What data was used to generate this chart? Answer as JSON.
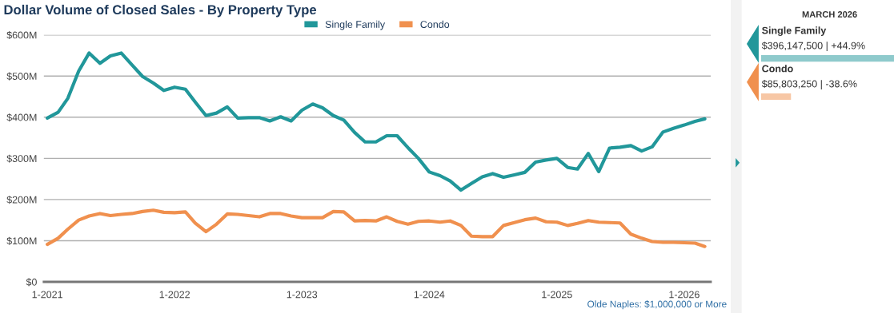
{
  "chart_data": {
    "type": "line",
    "title": "Dollar Volume of Closed Sales - By Property Type",
    "x": [
      "2021-01",
      "2021-02",
      "2021-03",
      "2021-04",
      "2021-05",
      "2021-06",
      "2021-07",
      "2021-08",
      "2021-09",
      "2021-10",
      "2021-11",
      "2021-12",
      "2022-01",
      "2022-02",
      "2022-03",
      "2022-04",
      "2022-05",
      "2022-06",
      "2022-07",
      "2022-08",
      "2022-09",
      "2022-10",
      "2022-11",
      "2022-12",
      "2023-01",
      "2023-02",
      "2023-03",
      "2023-04",
      "2023-05",
      "2023-06",
      "2023-07",
      "2023-08",
      "2023-09",
      "2023-10",
      "2023-11",
      "2023-12",
      "2024-01",
      "2024-02",
      "2024-03",
      "2024-04",
      "2024-05",
      "2024-06",
      "2024-07",
      "2024-08",
      "2024-09",
      "2024-10",
      "2024-11",
      "2024-12",
      "2025-01",
      "2025-02",
      "2025-03",
      "2025-04",
      "2025-05",
      "2025-06",
      "2025-07",
      "2025-08",
      "2025-09",
      "2025-10",
      "2025-11",
      "2025-12",
      "2026-01",
      "2026-02",
      "2026-03"
    ],
    "series": [
      {
        "name": "Single Family",
        "color": "#21979a",
        "values": [
          398,
          412,
          446,
          512,
          556,
          531,
          549,
          556,
          527,
          499,
          483,
          465,
          473,
          468,
          437,
          404,
          410,
          425,
          398,
          399,
          399,
          391,
          401,
          391,
          417,
          432,
          423,
          404,
          393,
          363,
          340,
          340,
          355,
          355,
          326,
          300,
          267,
          258,
          245,
          223,
          239,
          255,
          263,
          254,
          260,
          266,
          291,
          296,
          300,
          278,
          274,
          312,
          268,
          325,
          327,
          331,
          318,
          328,
          364,
          373,
          381,
          390,
          396
        ]
      },
      {
        "name": "Condo",
        "color": "#f0904e",
        "values": [
          91,
          106,
          128,
          150,
          160,
          166,
          161,
          164,
          166,
          171,
          174,
          169,
          168,
          170,
          143,
          122,
          140,
          165,
          164,
          161,
          158,
          166,
          166,
          160,
          156,
          156,
          156,
          171,
          170,
          148,
          149,
          148,
          158,
          147,
          140,
          147,
          148,
          145,
          148,
          137,
          111,
          110,
          110,
          137,
          144,
          151,
          155,
          146,
          145,
          137,
          142,
          149,
          145,
          144,
          143,
          116,
          106,
          98,
          96,
          96,
          95,
          94,
          86
        ]
      }
    ],
    "xlim": [
      "2020-12-22",
      "2026-03-18"
    ],
    "xticks": [
      {
        "value": "2021-01",
        "label": "1-2021"
      },
      {
        "value": "2022-01",
        "label": "1-2022"
      },
      {
        "value": "2023-01",
        "label": "1-2023"
      },
      {
        "value": "2024-01",
        "label": "1-2024"
      },
      {
        "value": "2025-01",
        "label": "1-2025"
      },
      {
        "value": "2026-01",
        "label": "1-2026"
      }
    ],
    "ylim": [
      0,
      600
    ],
    "yticks": [
      {
        "value": 0,
        "label": "$0"
      },
      {
        "value": 100,
        "label": "$100M"
      },
      {
        "value": 200,
        "label": "$200M"
      },
      {
        "value": 300,
        "label": "$300M"
      },
      {
        "value": 400,
        "label": "$400M"
      },
      {
        "value": 500,
        "label": "$500M"
      },
      {
        "value": 600,
        "label": "$600M"
      }
    ],
    "grid": "y",
    "legend": "top",
    "marker": "none",
    "line_style": "solid",
    "annotations": [
      "Olde Naples: $1,000,000 or More",
      "MARCH 2026",
      "Single Family",
      "$396,147,500 | +44.9%",
      "Condo",
      "$85,803,250 | -38.6%"
    ]
  }
}
